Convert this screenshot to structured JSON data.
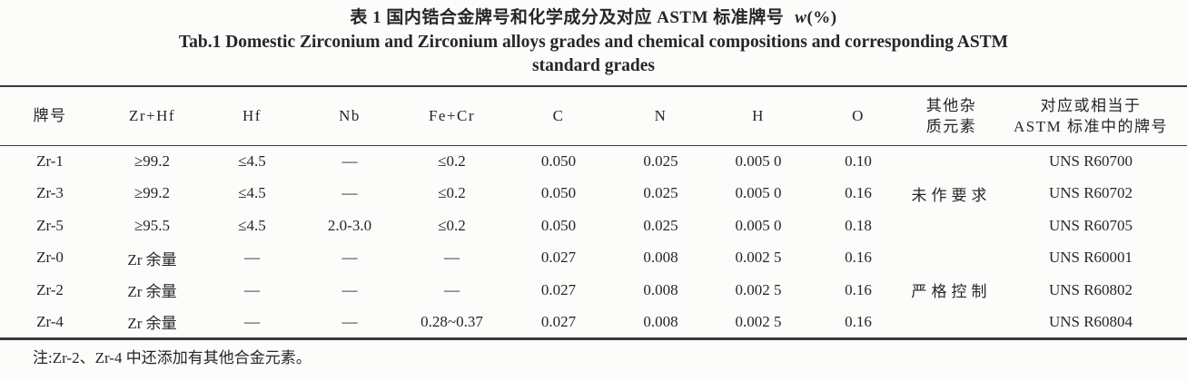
{
  "title": {
    "zh": "表 1 国内锆合金牌号和化学成分及对应 ASTM 标准牌号",
    "unit_italic": "w",
    "unit_rest": "(%)",
    "en_line1": "Tab.1 Domestic Zirconium and Zirconium alloys grades and chemical compositions and corresponding ASTM",
    "en_line2": "standard grades"
  },
  "table": {
    "columns": [
      {
        "line1": "牌号"
      },
      {
        "line1": "Zr+Hf"
      },
      {
        "line1": "Hf"
      },
      {
        "line1": "Nb"
      },
      {
        "line1": "Fe+Cr"
      },
      {
        "line1": "C"
      },
      {
        "line1": "N"
      },
      {
        "line1": "H"
      },
      {
        "line1": "O"
      },
      {
        "line1": "其他杂",
        "line2": "质元素"
      },
      {
        "line1": "对应或相当于",
        "line2": "ASTM 标准中的牌号"
      }
    ],
    "rows": [
      [
        "Zr-1",
        "≥99.2",
        "≤4.5",
        "—",
        "≤0.2",
        "0.050",
        "0.025",
        "0.005 0",
        "0.10",
        "",
        "UNS R60700"
      ],
      [
        "Zr-3",
        "≥99.2",
        "≤4.5",
        "—",
        "≤0.2",
        "0.050",
        "0.025",
        "0.005 0",
        "0.16",
        "未作要求",
        "UNS R60702"
      ],
      [
        "Zr-5",
        "≥95.5",
        "≤4.5",
        "2.0-3.0",
        "≤0.2",
        "0.050",
        "0.025",
        "0.005 0",
        "0.18",
        "",
        "UNS R60705"
      ],
      [
        "Zr-0",
        "Zr 余量",
        "—",
        "—",
        "—",
        "0.027",
        "0.008",
        "0.002 5",
        "0.16",
        "",
        "UNS R60001"
      ],
      [
        "Zr-2",
        "Zr 余量",
        "—",
        "—",
        "—",
        "0.027",
        "0.008",
        "0.002 5",
        "0.16",
        "严格控制",
        "UNS R60802"
      ],
      [
        "Zr-4",
        "Zr 余量",
        "—",
        "—",
        "0.28~0.37",
        "0.027",
        "0.008",
        "0.002 5",
        "0.16",
        "",
        "UNS R60804"
      ]
    ]
  },
  "footnote": "注:Zr-2、Zr-4 中还添加有其他合金元素。"
}
